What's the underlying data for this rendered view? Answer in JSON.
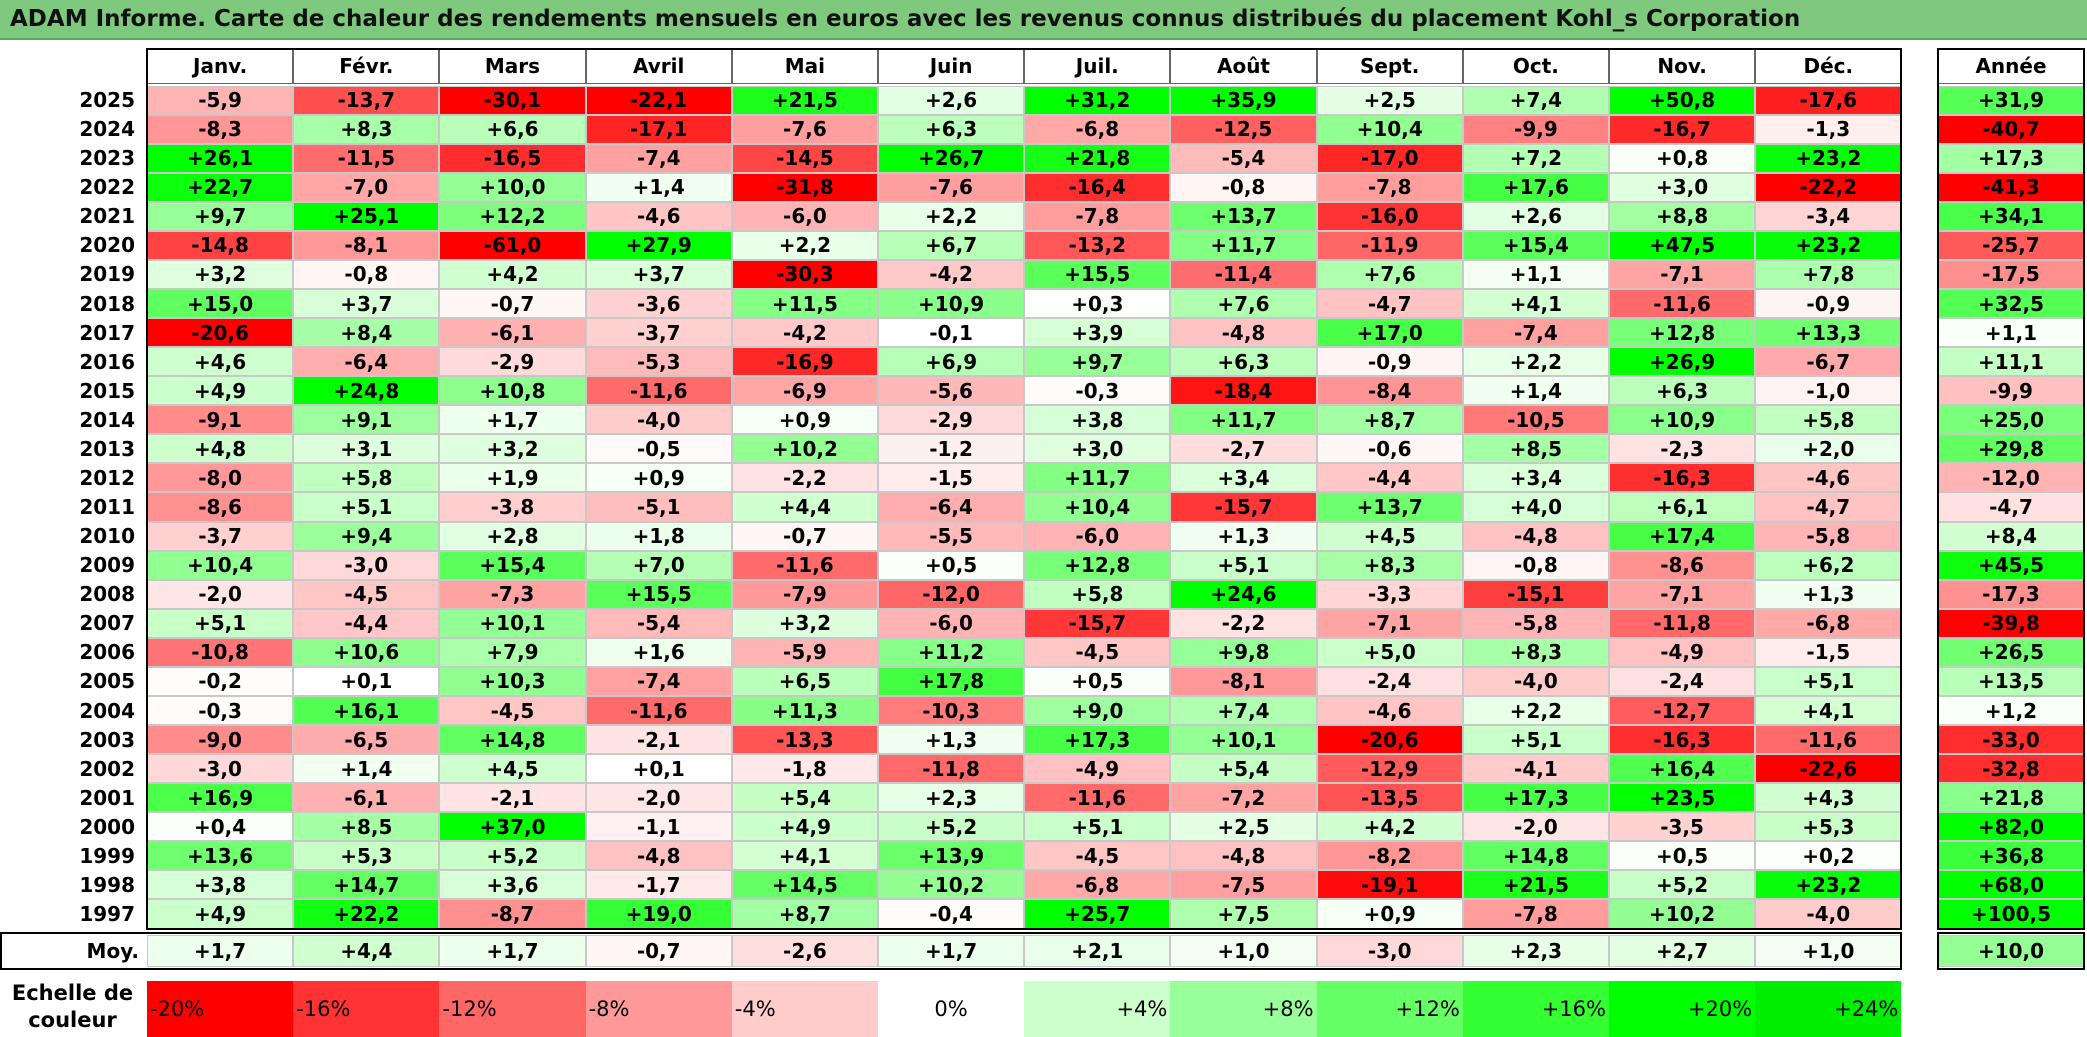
{
  "title": "ADAM Informe. Carte de chaleur des rendements mensuels en euros avec les revenus connus distribués du placement Kohl_s Corporation",
  "chart_data": {
    "type": "heatmap",
    "columns": [
      "Janv.",
      "Févr.",
      "Mars",
      "Avril",
      "Mai",
      "Juin",
      "Juil.",
      "Août",
      "Sept.",
      "Oct.",
      "Nov.",
      "Déc."
    ],
    "annual_header": "Année",
    "average_label": "Moy.",
    "rows": [
      {
        "year": "2025",
        "values": [
          "-5,9",
          "-13,7",
          "-30,1",
          "-22,1",
          "+21,5",
          "+2,6",
          "+31,2",
          "+35,9",
          "+2,5",
          "+7,4",
          "+50,8",
          "-17,6"
        ],
        "annual": "+31,9"
      },
      {
        "year": "2024",
        "values": [
          "-8,3",
          "+8,3",
          "+6,6",
          "-17,1",
          "-7,6",
          "+6,3",
          "-6,8",
          "-12,5",
          "+10,4",
          "-9,9",
          "-16,7",
          "-1,3"
        ],
        "annual": "-40,7"
      },
      {
        "year": "2023",
        "values": [
          "+26,1",
          "-11,5",
          "-16,5",
          "-7,4",
          "-14,5",
          "+26,7",
          "+21,8",
          "-5,4",
          "-17,0",
          "+7,2",
          "+0,8",
          "+23,2"
        ],
        "annual": "+17,3"
      },
      {
        "year": "2022",
        "values": [
          "+22,7",
          "-7,0",
          "+10,0",
          "+1,4",
          "-31,8",
          "-7,6",
          "-16,4",
          "-0,8",
          "-7,8",
          "+17,6",
          "+3,0",
          "-22,2"
        ],
        "annual": "-41,3"
      },
      {
        "year": "2021",
        "values": [
          "+9,7",
          "+25,1",
          "+12,2",
          "-4,6",
          "-6,0",
          "+2,2",
          "-7,8",
          "+13,7",
          "-16,0",
          "+2,6",
          "+8,8",
          "-3,4"
        ],
        "annual": "+34,1"
      },
      {
        "year": "2020",
        "values": [
          "-14,8",
          "-8,1",
          "-61,0",
          "+27,9",
          "+2,2",
          "+6,7",
          "-13,2",
          "+11,7",
          "-11,9",
          "+15,4",
          "+47,5",
          "+23,2"
        ],
        "annual": "-25,7"
      },
      {
        "year": "2019",
        "values": [
          "+3,2",
          "-0,8",
          "+4,2",
          "+3,7",
          "-30,3",
          "-4,2",
          "+15,5",
          "-11,4",
          "+7,6",
          "+1,1",
          "-7,1",
          "+7,8"
        ],
        "annual": "-17,5"
      },
      {
        "year": "2018",
        "values": [
          "+15,0",
          "+3,7",
          "-0,7",
          "-3,6",
          "+11,5",
          "+10,9",
          "+0,3",
          "+7,6",
          "-4,7",
          "+4,1",
          "-11,6",
          "-0,9"
        ],
        "annual": "+32,5"
      },
      {
        "year": "2017",
        "values": [
          "-20,6",
          "+8,4",
          "-6,1",
          "-3,7",
          "-4,2",
          "-0,1",
          "+3,9",
          "-4,8",
          "+17,0",
          "-7,4",
          "+12,8",
          "+13,3"
        ],
        "annual": "+1,1"
      },
      {
        "year": "2016",
        "values": [
          "+4,6",
          "-6,4",
          "-2,9",
          "-5,3",
          "-16,9",
          "+6,9",
          "+9,7",
          "+6,3",
          "-0,9",
          "+2,2",
          "+26,9",
          "-6,7"
        ],
        "annual": "+11,1"
      },
      {
        "year": "2015",
        "values": [
          "+4,9",
          "+24,8",
          "+10,8",
          "-11,6",
          "-6,9",
          "-5,6",
          "-0,3",
          "-18,4",
          "-8,4",
          "+1,4",
          "+6,3",
          "-1,0"
        ],
        "annual": "-9,9"
      },
      {
        "year": "2014",
        "values": [
          "-9,1",
          "+9,1",
          "+1,7",
          "-4,0",
          "+0,9",
          "-2,9",
          "+3,8",
          "+11,7",
          "+8,7",
          "-10,5",
          "+10,9",
          "+5,8"
        ],
        "annual": "+25,0"
      },
      {
        "year": "2013",
        "values": [
          "+4,8",
          "+3,1",
          "+3,2",
          "-0,5",
          "+10,2",
          "-1,2",
          "+3,0",
          "-2,7",
          "-0,6",
          "+8,5",
          "-2,3",
          "+2,0"
        ],
        "annual": "+29,8"
      },
      {
        "year": "2012",
        "values": [
          "-8,0",
          "+5,8",
          "+1,9",
          "+0,9",
          "-2,2",
          "-1,5",
          "+11,7",
          "+3,4",
          "-4,4",
          "+3,4",
          "-16,3",
          "-4,6"
        ],
        "annual": "-12,0"
      },
      {
        "year": "2011",
        "values": [
          "-8,6",
          "+5,1",
          "-3,8",
          "-5,1",
          "+4,4",
          "-6,4",
          "+10,4",
          "-15,7",
          "+13,7",
          "+4,0",
          "+6,1",
          "-4,7"
        ],
        "annual": "-4,7"
      },
      {
        "year": "2010",
        "values": [
          "-3,7",
          "+9,4",
          "+2,8",
          "+1,8",
          "-0,7",
          "-5,5",
          "-6,0",
          "+1,3",
          "+4,5",
          "-4,8",
          "+17,4",
          "-5,8"
        ],
        "annual": "+8,4"
      },
      {
        "year": "2009",
        "values": [
          "+10,4",
          "-3,0",
          "+15,4",
          "+7,0",
          "-11,6",
          "+0,5",
          "+12,8",
          "+5,1",
          "+8,3",
          "-0,8",
          "-8,6",
          "+6,2"
        ],
        "annual": "+45,5"
      },
      {
        "year": "2008",
        "values": [
          "-2,0",
          "-4,5",
          "-7,3",
          "+15,5",
          "-7,9",
          "-12,0",
          "+5,8",
          "+24,6",
          "-3,3",
          "-15,1",
          "-7,1",
          "+1,3"
        ],
        "annual": "-17,3"
      },
      {
        "year": "2007",
        "values": [
          "+5,1",
          "-4,4",
          "+10,1",
          "-5,4",
          "+3,2",
          "-6,0",
          "-15,7",
          "-2,2",
          "-7,1",
          "-5,8",
          "-11,8",
          "-6,8"
        ],
        "annual": "-39,8"
      },
      {
        "year": "2006",
        "values": [
          "-10,8",
          "+10,6",
          "+7,9",
          "+1,6",
          "-5,9",
          "+11,2",
          "-4,5",
          "+9,8",
          "+5,0",
          "+8,3",
          "-4,9",
          "-1,5"
        ],
        "annual": "+26,5"
      },
      {
        "year": "2005",
        "values": [
          "-0,2",
          "+0,1",
          "+10,3",
          "-7,4",
          "+6,5",
          "+17,8",
          "+0,5",
          "-8,1",
          "-2,4",
          "-4,0",
          "-2,4",
          "+5,1"
        ],
        "annual": "+13,5"
      },
      {
        "year": "2004",
        "values": [
          "-0,3",
          "+16,1",
          "-4,5",
          "-11,6",
          "+11,3",
          "-10,3",
          "+9,0",
          "+7,4",
          "-4,6",
          "+2,2",
          "-12,7",
          "+4,1"
        ],
        "annual": "+1,2"
      },
      {
        "year": "2003",
        "values": [
          "-9,0",
          "-6,5",
          "+14,8",
          "-2,1",
          "-13,3",
          "+1,3",
          "+17,3",
          "+10,1",
          "-20,6",
          "+5,1",
          "-16,3",
          "-11,6"
        ],
        "annual": "-33,0"
      },
      {
        "year": "2002",
        "values": [
          "-3,0",
          "+1,4",
          "+4,5",
          "+0,1",
          "-1,8",
          "-11,8",
          "-4,9",
          "+5,4",
          "-12,9",
          "-4,1",
          "+16,4",
          "-22,6"
        ],
        "annual": "-32,8"
      },
      {
        "year": "2001",
        "values": [
          "+16,9",
          "-6,1",
          "-2,1",
          "-2,0",
          "+5,4",
          "+2,3",
          "-11,6",
          "-7,2",
          "-13,5",
          "+17,3",
          "+23,5",
          "+4,3"
        ],
        "annual": "+21,8"
      },
      {
        "year": "2000",
        "values": [
          "+0,4",
          "+8,5",
          "+37,0",
          "-1,1",
          "+4,9",
          "+5,2",
          "+5,1",
          "+2,5",
          "+4,2",
          "-2,0",
          "-3,5",
          "+5,3"
        ],
        "annual": "+82,0"
      },
      {
        "year": "1999",
        "values": [
          "+13,6",
          "+5,3",
          "+5,2",
          "-4,8",
          "+4,1",
          "+13,9",
          "-4,5",
          "-4,8",
          "-8,2",
          "+14,8",
          "+0,5",
          "+0,2"
        ],
        "annual": "+36,8"
      },
      {
        "year": "1998",
        "values": [
          "+3,8",
          "+14,7",
          "+3,6",
          "-1,7",
          "+14,5",
          "+10,2",
          "-6,8",
          "-7,5",
          "-19,1",
          "+21,5",
          "+5,2",
          "+23,2"
        ],
        "annual": "+68,0"
      },
      {
        "year": "1997",
        "values": [
          "+4,9",
          "+22,2",
          "-8,7",
          "+19,0",
          "+8,7",
          "-0,4",
          "+25,7",
          "+7,5",
          "+0,9",
          "-7,8",
          "+10,2",
          "-4,0"
        ],
        "annual": "+100,5"
      }
    ],
    "average": {
      "values": [
        "+1,7",
        "+4,4",
        "+1,7",
        "-0,7",
        "-2,6",
        "+1,7",
        "+2,1",
        "+1,0",
        "-3,0",
        "+2,3",
        "+2,7",
        "+1,0"
      ],
      "annual": "+10,0"
    },
    "scale": {
      "label": "Echelle de couleur",
      "steps": [
        "-20%",
        "-16%",
        "-12%",
        "-8%",
        "-4%",
        "0%",
        "+4%",
        "+8%",
        "+12%",
        "+16%",
        "+20%",
        "+24%"
      ],
      "colors": [
        "#ff0000",
        "#ff3333",
        "#ff6666",
        "#ff9999",
        "#ffcccc",
        "#ffffff",
        "#ccffcc",
        "#99ff99",
        "#66ff66",
        "#33ff33",
        "#00ff00",
        "#00ee00"
      ]
    },
    "color_min": -20,
    "color_max": 24,
    "neg_color": "#ff0000",
    "pos_color": "#00ff00"
  }
}
